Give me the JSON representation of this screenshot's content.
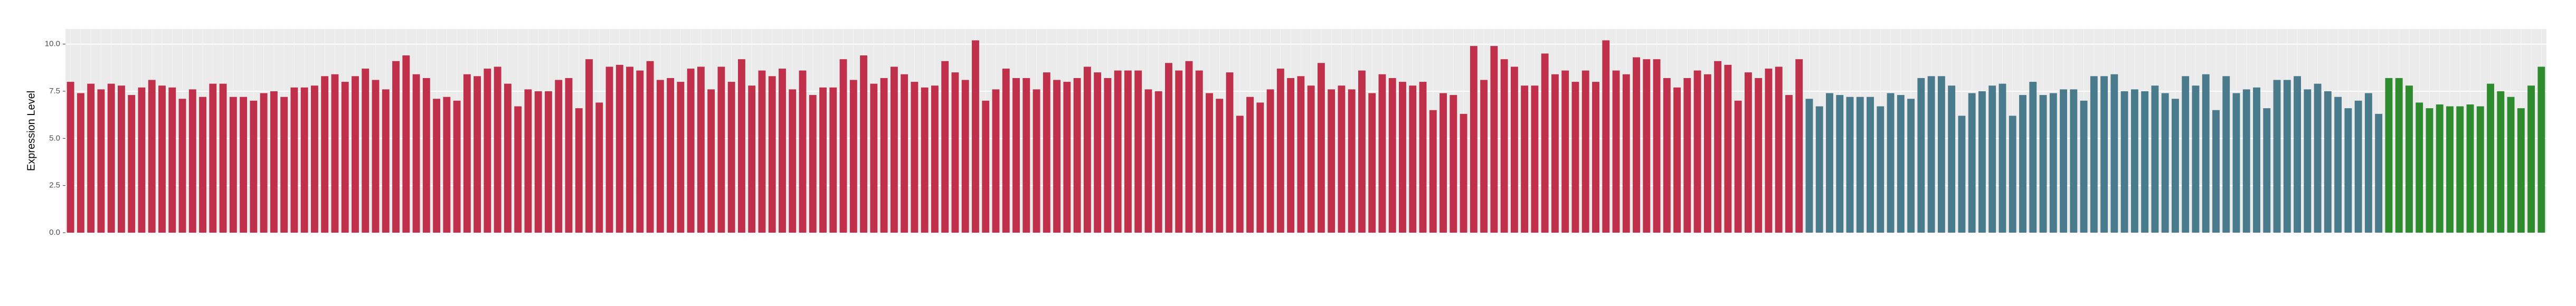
{
  "chart_data": {
    "type": "bar",
    "y_label": "Expression Level",
    "ylim": [
      0,
      10.8
    ],
    "yticks": [
      {
        "value": 0,
        "label": "0.0"
      },
      2.5,
      {
        "value": 5,
        "label": "5.0"
      },
      7.5,
      {
        "value": 10,
        "label": "10.0"
      }
    ],
    "grid": true,
    "series": [
      {
        "color": "#c0304a",
        "values": [
          8.0,
          7.4,
          7.9,
          7.6,
          7.9,
          7.8,
          7.3,
          7.7,
          8.1,
          7.8,
          7.7,
          7.1,
          7.6,
          7.2,
          7.9,
          7.9,
          7.2,
          7.2,
          7.0,
          7.4,
          7.5,
          7.2,
          7.7,
          7.7,
          7.8,
          8.3,
          8.4,
          8.0,
          8.3,
          8.7,
          8.1,
          7.6,
          9.1,
          9.4,
          8.4,
          8.2,
          7.1,
          7.2,
          7.0,
          8.4,
          8.3,
          8.7,
          8.8,
          7.9,
          6.7,
          7.6,
          7.5,
          7.5,
          8.1,
          8.2,
          6.6,
          9.2,
          6.9,
          8.8,
          8.9,
          8.8,
          8.6,
          9.1,
          8.1,
          8.2,
          8.0,
          8.7,
          8.8,
          7.6,
          8.8,
          8.0,
          9.2,
          7.8,
          8.6,
          8.3,
          8.7,
          7.6,
          8.6,
          7.3,
          7.7,
          7.7,
          9.2,
          8.1,
          9.4,
          7.9,
          8.2,
          8.8,
          8.4,
          8.0,
          7.7,
          7.8,
          9.1,
          8.5,
          8.1,
          10.2,
          7.0,
          7.6,
          8.7,
          8.2,
          8.2,
          7.6,
          8.5,
          8.1,
          8.0,
          8.2,
          8.8,
          8.5,
          8.2,
          8.6,
          8.6,
          8.6,
          7.6,
          7.5,
          9.0,
          8.6,
          9.1,
          8.6,
          7.4,
          7.1,
          8.5,
          6.2,
          7.2,
          6.9,
          7.6,
          8.7,
          8.2,
          8.3,
          7.8,
          9.0,
          7.6,
          7.8,
          7.6,
          8.6,
          7.4,
          8.4,
          8.2,
          8.0,
          7.8,
          8.0,
          6.5,
          7.4,
          7.3,
          6.3,
          9.9,
          8.1,
          9.9,
          9.2,
          8.8,
          7.8,
          7.8,
          9.5,
          8.4,
          8.6,
          8.0,
          8.6,
          8.0,
          10.2,
          8.6,
          8.4,
          9.3,
          9.2,
          9.2,
          8.2,
          7.7,
          8.2,
          8.6,
          8.4,
          9.1,
          8.9,
          7.0,
          8.5,
          8.2,
          8.7,
          8.8,
          7.3,
          9.2
        ]
      },
      {
        "color": "#4a7b8c",
        "values": [
          7.1,
          6.7,
          7.4,
          7.3,
          7.2,
          7.2,
          7.2,
          6.7,
          7.4,
          7.3,
          7.1,
          8.2,
          8.3,
          8.3,
          7.8,
          6.2,
          7.4,
          7.5,
          7.8,
          7.9,
          6.2,
          7.3,
          8.0,
          7.3,
          7.4,
          7.6,
          7.6,
          7.0,
          8.3,
          8.3,
          8.4,
          7.5,
          7.6,
          7.5,
          7.8,
          7.4,
          7.1,
          8.3,
          7.8,
          8.4,
          6.5,
          8.3,
          7.4,
          7.6,
          7.7,
          6.6,
          8.1,
          8.1,
          8.3,
          7.6,
          7.9,
          7.5,
          7.2,
          6.6,
          7.0,
          7.4,
          6.3
        ]
      },
      {
        "color": "#2e8b2e",
        "values": [
          8.2,
          8.2,
          7.8,
          6.9,
          6.6,
          6.8,
          6.7,
          6.7,
          6.8,
          6.7,
          7.9,
          7.5,
          7.2,
          6.6,
          7.8,
          8.8
        ]
      }
    ]
  }
}
